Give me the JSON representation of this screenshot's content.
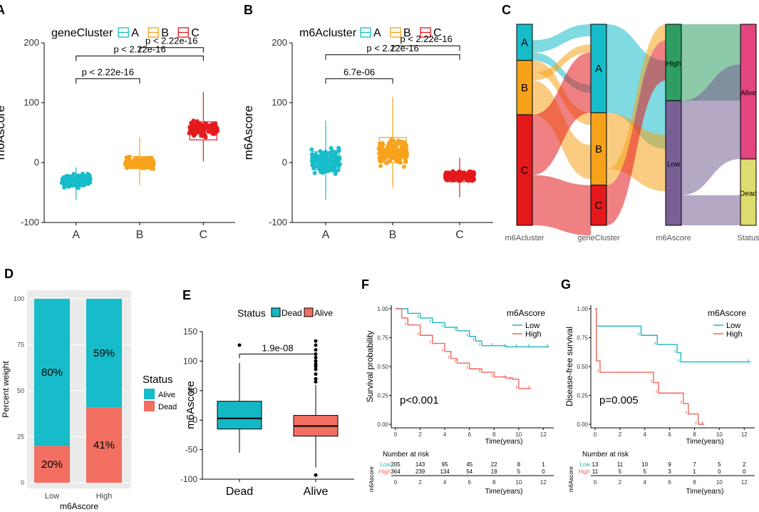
{
  "colors": {
    "teal": "#16bcc9",
    "orange": "#f5a21a",
    "red": "#e3191c",
    "gray_box": "#d3d3d3",
    "dead_teal": "#14b8c4",
    "alive_salmon": "#f26f62",
    "pink": "#e4447f",
    "yellow_green": "#dedc6e",
    "green": "#2f9e63",
    "purple": "#786095",
    "low_line": "#1fb4c2",
    "high_line": "#f2645b"
  },
  "chart_data": [
    {
      "id": "A",
      "type": "box",
      "panel_label": "A",
      "title": "geneCluster",
      "legend": [
        "A",
        "B",
        "C"
      ],
      "categories": [
        "A",
        "B",
        "C"
      ],
      "ylabel": "m6Ascore",
      "ylim": [
        -100,
        200
      ],
      "yticks": [
        "-100",
        "0",
        "100",
        "200"
      ],
      "boxes": [
        {
          "q1": -38,
          "median": -30,
          "q3": -22,
          "whisker_low": -62,
          "whisker_high": -8,
          "n_points": 180,
          "spread": 14
        },
        {
          "q1": -10,
          "median": -1,
          "q3": 10,
          "whisker_low": -38,
          "whisker_high": 42,
          "n_points": 200,
          "spread": 14
        },
        {
          "q1": 38,
          "median": 57,
          "q3": 68,
          "whisker_low": 2,
          "whisker_high": 118,
          "n_points": 80,
          "spread": 22
        }
      ],
      "comparisons": [
        {
          "from": 0,
          "to": 1,
          "label": "p < 2.22e-16",
          "y": 140
        },
        {
          "from": 0,
          "to": 2,
          "label": "p < 2.22e-16",
          "y": 178
        },
        {
          "from": 1,
          "to": 2,
          "label": "p < 2.22e-16",
          "y": 192
        }
      ]
    },
    {
      "id": "B",
      "type": "box",
      "panel_label": "B",
      "title": "m6Acluster",
      "legend": [
        "A",
        "B",
        "C"
      ],
      "categories": [
        "A",
        "B",
        "C"
      ],
      "ylabel": "m6Ascore",
      "ylim": [
        -100,
        200
      ],
      "yticks": [
        "-100",
        "0",
        "100",
        "200"
      ],
      "boxes": [
        {
          "q1": -12,
          "median": 2,
          "q3": 18,
          "whisker_low": -62,
          "whisker_high": 70,
          "n_points": 140,
          "spread": 30
        },
        {
          "q1": 0,
          "median": 18,
          "q3": 42,
          "whisker_low": -42,
          "whisker_high": 110,
          "n_points": 150,
          "spread": 34
        },
        {
          "q1": -32,
          "median": -23,
          "q3": -16,
          "whisker_low": -58,
          "whisker_high": 8,
          "n_points": 220,
          "spread": 12
        }
      ],
      "comparisons": [
        {
          "from": 0,
          "to": 1,
          "label": "6.7e-06",
          "y": 140
        },
        {
          "from": 0,
          "to": 2,
          "label": "p < 2.22e-16",
          "y": 180
        },
        {
          "from": 1,
          "to": 2,
          "label": "p < 2.22e-16",
          "y": 195
        }
      ]
    },
    {
      "id": "C",
      "type": "alluvial",
      "panel_label": "C",
      "axes": [
        "m6Acluster",
        "geneCluster",
        "m6Ascore",
        "Status"
      ],
      "strata": [
        [
          {
            "label": "A",
            "value": 0.18
          },
          {
            "label": "B",
            "value": 0.27
          },
          {
            "label": "C",
            "value": 0.55
          }
        ],
        [
          {
            "label": "A",
            "value": 0.44
          },
          {
            "label": "B",
            "value": 0.36
          },
          {
            "label": "C",
            "value": 0.2
          }
        ],
        [
          {
            "label": "High",
            "value": 0.38
          },
          {
            "label": "Low",
            "value": 0.62
          }
        ],
        [
          {
            "label": "Alive",
            "value": 0.67
          },
          {
            "label": "Dead",
            "value": 0.33
          }
        ]
      ]
    },
    {
      "id": "D",
      "type": "stacked-bar",
      "panel_label": "D",
      "categories": [
        "Low",
        "High"
      ],
      "xlabel": "m6Ascore",
      "ylabel": "Percent weight",
      "yticks": [
        "0",
        "25",
        "50",
        "75",
        "100"
      ],
      "series": [
        {
          "name": "Alive",
          "values": [
            80,
            59
          ],
          "labels": [
            "80%",
            "59%"
          ]
        },
        {
          "name": "Dead",
          "values": [
            20,
            41
          ],
          "labels": [
            "20%",
            "41%"
          ]
        }
      ],
      "legend_title": "Status",
      "legend": [
        "Alive",
        "Dead"
      ]
    },
    {
      "id": "E",
      "type": "box",
      "panel_label": "E",
      "title": "Status",
      "legend": [
        "Dead",
        "Alive"
      ],
      "categories": [
        "Dead",
        "Alive"
      ],
      "ylabel": "m6Ascore",
      "ylim": [
        -100,
        150
      ],
      "yticks": [
        "-100",
        "-50",
        "0",
        "50",
        "100",
        "150"
      ],
      "boxes": [
        {
          "q1": -15,
          "median": 3,
          "q3": 32,
          "whisker_low": -55,
          "whisker_high": 97,
          "outliers": [
            127
          ]
        },
        {
          "q1": -27,
          "median": -10,
          "q3": 8,
          "whisker_low": -80,
          "whisker_high": 60,
          "outliers": [
            -93,
            65,
            70,
            78,
            86,
            91,
            95,
            100,
            106,
            112,
            119,
            127,
            134
          ]
        }
      ],
      "comparisons": [
        {
          "from": 0,
          "to": 1,
          "label": "1.9e-08",
          "y": 112
        }
      ]
    },
    {
      "id": "F",
      "type": "line",
      "panel_label": "F",
      "ylabel": "Survival probability",
      "xlabel": "Time(years)",
      "xlim": [
        0,
        12.5
      ],
      "ylim": [
        0,
        1
      ],
      "xticks": [
        "0",
        "2",
        "4",
        "6",
        "8",
        "10",
        "12"
      ],
      "yticks": [
        "0.00",
        "0.25",
        "0.50",
        "0.75",
        "1.00"
      ],
      "legend_title": "m6Ascore",
      "pvalue": "p<0.001",
      "series": [
        {
          "name": "Low",
          "x": [
            0,
            1,
            2,
            3,
            4,
            5,
            6,
            6.5,
            7,
            8,
            9,
            10,
            11,
            12.5
          ],
          "y": [
            1.0,
            0.96,
            0.92,
            0.88,
            0.84,
            0.81,
            0.76,
            0.72,
            0.68,
            0.68,
            0.67,
            0.67,
            0.67,
            0.67
          ]
        },
        {
          "name": "High",
          "x": [
            0,
            0.5,
            1,
            2,
            3,
            4,
            4.5,
            5,
            6,
            7,
            8,
            9,
            9.5,
            10,
            11
          ],
          "y": [
            1.0,
            0.92,
            0.86,
            0.77,
            0.7,
            0.63,
            0.57,
            0.53,
            0.48,
            0.45,
            0.41,
            0.4,
            0.39,
            0.31,
            0.31
          ]
        }
      ],
      "risk_table": {
        "title": "Number at risk",
        "ylabel": "m6Ascore",
        "xlabel": "Time(years)",
        "rows": [
          {
            "name": "Low",
            "values": [
              "205",
              "143",
              "95",
              "45",
              "22",
              "8",
              "1"
            ]
          },
          {
            "name": "High",
            "values": [
              "364",
              "239",
              "134",
              "54",
              "19",
              "5",
              "0"
            ]
          }
        ]
      }
    },
    {
      "id": "G",
      "type": "line",
      "panel_label": "G",
      "ylabel": "Disease-free survival",
      "xlabel": "Time(years)",
      "xlim": [
        0,
        12.5
      ],
      "ylim": [
        0,
        1
      ],
      "xticks": [
        "0",
        "2",
        "4",
        "6",
        "8",
        "10",
        "12"
      ],
      "yticks": [
        "0.00",
        "0.25",
        "0.50",
        "0.75",
        "1.00"
      ],
      "legend_title": "m6Ascore",
      "pvalue": "p=0.005",
      "series": [
        {
          "name": "Low",
          "x": [
            0,
            0.1,
            3.7,
            5,
            6.6,
            6.9,
            12.5
          ],
          "y": [
            1.0,
            0.85,
            0.77,
            0.69,
            0.62,
            0.54,
            0.54
          ]
        },
        {
          "name": "High",
          "x": [
            0,
            0.1,
            0.4,
            4.7,
            5.1,
            7.1,
            7.5,
            8.3,
            8.8
          ],
          "y": [
            1.0,
            0.55,
            0.45,
            0.36,
            0.27,
            0.18,
            0.09,
            0.0,
            0.0
          ]
        }
      ],
      "risk_table": {
        "title": "Number at risk",
        "ylabel": "m6Ascore",
        "xlabel": "Time(years)",
        "rows": [
          {
            "name": "Low",
            "values": [
              "13",
              "11",
              "10",
              "9",
              "7",
              "5",
              "2"
            ]
          },
          {
            "name": "High",
            "values": [
              "11",
              "5",
              "5",
              "3",
              "1",
              "0",
              "0"
            ]
          }
        ]
      }
    }
  ]
}
